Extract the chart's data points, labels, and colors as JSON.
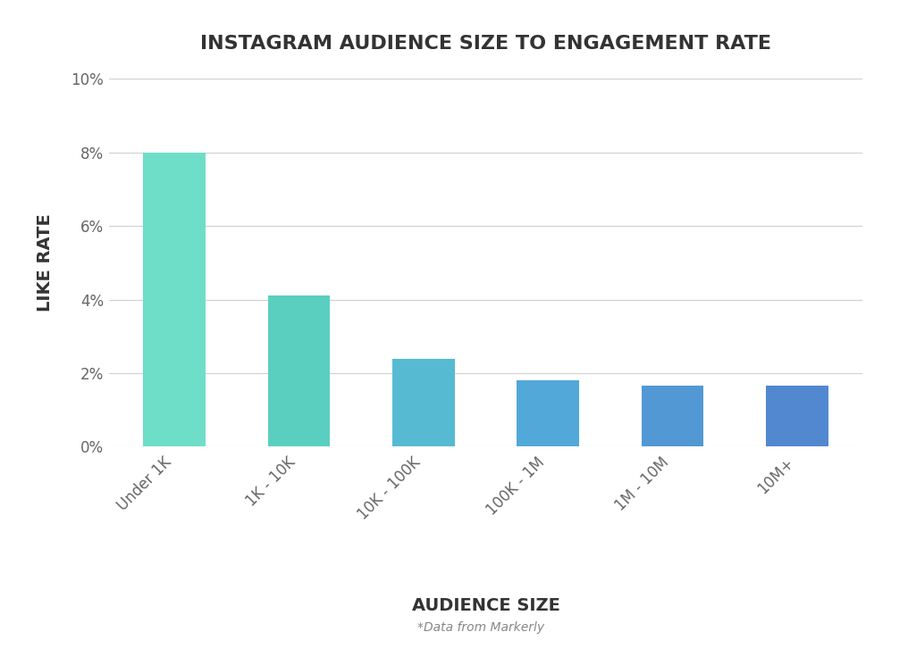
{
  "title": "INSTAGRAM AUDIENCE SIZE TO ENGAGEMENT RATE",
  "categories": [
    "Under 1K",
    "1K - 10K",
    "10K - 100K",
    "100K - 1M",
    "1M - 10M",
    "10M+"
  ],
  "values": [
    8.0,
    4.1,
    2.4,
    1.8,
    1.65,
    1.65
  ],
  "bar_colors": [
    "#6EDEC8",
    "#5ACFC0",
    "#56BAD2",
    "#52A8D8",
    "#5298D4",
    "#5288D0"
  ],
  "xlabel": "AUDIENCE SIZE",
  "ylabel": "LIKE RATE",
  "ylim": [
    0,
    10
  ],
  "yticks": [
    0,
    2,
    4,
    6,
    8,
    10
  ],
  "ytick_labels": [
    "0%",
    "2%",
    "4%",
    "6%",
    "8%",
    "10%"
  ],
  "title_fontsize": 16,
  "axis_label_fontsize": 14,
  "tick_fontsize": 12,
  "footnote": "*Data from Markerly",
  "background_color": "#ffffff",
  "grid_color": "#d0d0d0",
  "bar_width": 0.5
}
